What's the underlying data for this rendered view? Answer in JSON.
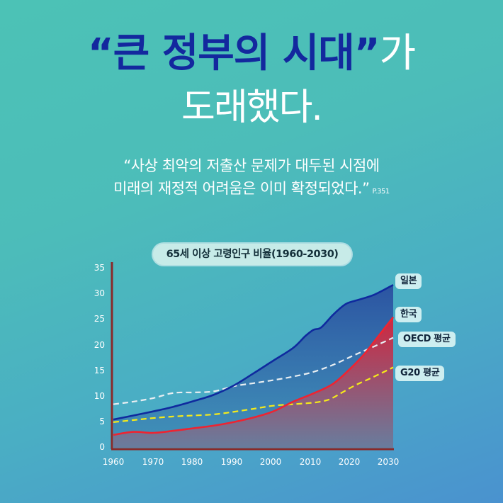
{
  "headline": {
    "quote_open": "“",
    "emphasis": "큰 정부의 시대",
    "quote_close": "”",
    "suffix": "가",
    "line2": "도래했다."
  },
  "quote": {
    "line1": "“사상 최악의 저출산 문제가 대두된 시점에",
    "line2": "미래의 재정적 어려움은 이미 확정되었다.”",
    "page_ref": "P.351"
  },
  "colors": {
    "headline_emphasis": "#13289e",
    "japan": "#0f2a9e",
    "korea": "#ee2431",
    "oecd": "#e8eef2",
    "g20": "#f5ea1a",
    "axis": "#8a2a2a"
  },
  "chart_data": {
    "type": "line",
    "title": "65세 이상 고령인구 비율(1960-2030)",
    "xlabel": "",
    "ylabel": "",
    "xlim": [
      1960,
      2030
    ],
    "ylim": [
      0,
      35
    ],
    "x_ticks": [
      "1960",
      "1970",
      "1980",
      "1990",
      "2000",
      "2010",
      "2020",
      "2030"
    ],
    "y_ticks": [
      "0",
      "5",
      "10",
      "15",
      "20",
      "25",
      "30",
      "35"
    ],
    "grid": false,
    "legend_position": "right (end-of-line labels)",
    "series": [
      {
        "name": "일본",
        "style": "solid, filled area",
        "x": [
          1960,
          1965,
          1970,
          1975,
          1980,
          1985,
          1990,
          1995,
          2000,
          2005,
          2008,
          2010,
          2012,
          2015,
          2018,
          2020,
          2025,
          2030
        ],
        "values": [
          5.5,
          6.3,
          7.1,
          8.0,
          9.1,
          10.3,
          12.1,
          14.5,
          17.0,
          19.5,
          21.8,
          23.0,
          23.5,
          26.0,
          28.0,
          28.6,
          29.8,
          31.8
        ]
      },
      {
        "name": "한국",
        "style": "solid, filled area",
        "x": [
          1960,
          1965,
          1970,
          1975,
          1980,
          1985,
          1990,
          1995,
          2000,
          2005,
          2010,
          2015,
          2020,
          2023,
          2025,
          2028,
          2030
        ],
        "values": [
          2.5,
          3.1,
          2.9,
          3.3,
          3.8,
          4.3,
          5.0,
          5.9,
          7.1,
          9.0,
          10.6,
          12.5,
          16.0,
          18.5,
          20.5,
          23.5,
          25.5
        ]
      },
      {
        "name": "OECD 평균",
        "style": "dashed",
        "x": [
          1960,
          1965,
          1970,
          1975,
          1980,
          1985,
          1990,
          1995,
          2000,
          2005,
          2010,
          2015,
          2020,
          2025,
          2030
        ],
        "values": [
          8.5,
          9.0,
          9.7,
          10.7,
          10.8,
          11.0,
          12.0,
          12.6,
          13.2,
          13.9,
          14.8,
          16.2,
          18.0,
          19.7,
          21.5
        ]
      },
      {
        "name": "G20 평균",
        "style": "dashed",
        "x": [
          1960,
          1965,
          1970,
          1975,
          1980,
          1985,
          1990,
          1995,
          2000,
          2005,
          2010,
          2013,
          2015,
          2020,
          2025,
          2030
        ],
        "values": [
          5.0,
          5.4,
          5.8,
          6.1,
          6.3,
          6.5,
          7.0,
          7.6,
          8.2,
          8.5,
          8.8,
          9.2,
          9.8,
          12.0,
          13.8,
          15.7
        ]
      }
    ]
  }
}
